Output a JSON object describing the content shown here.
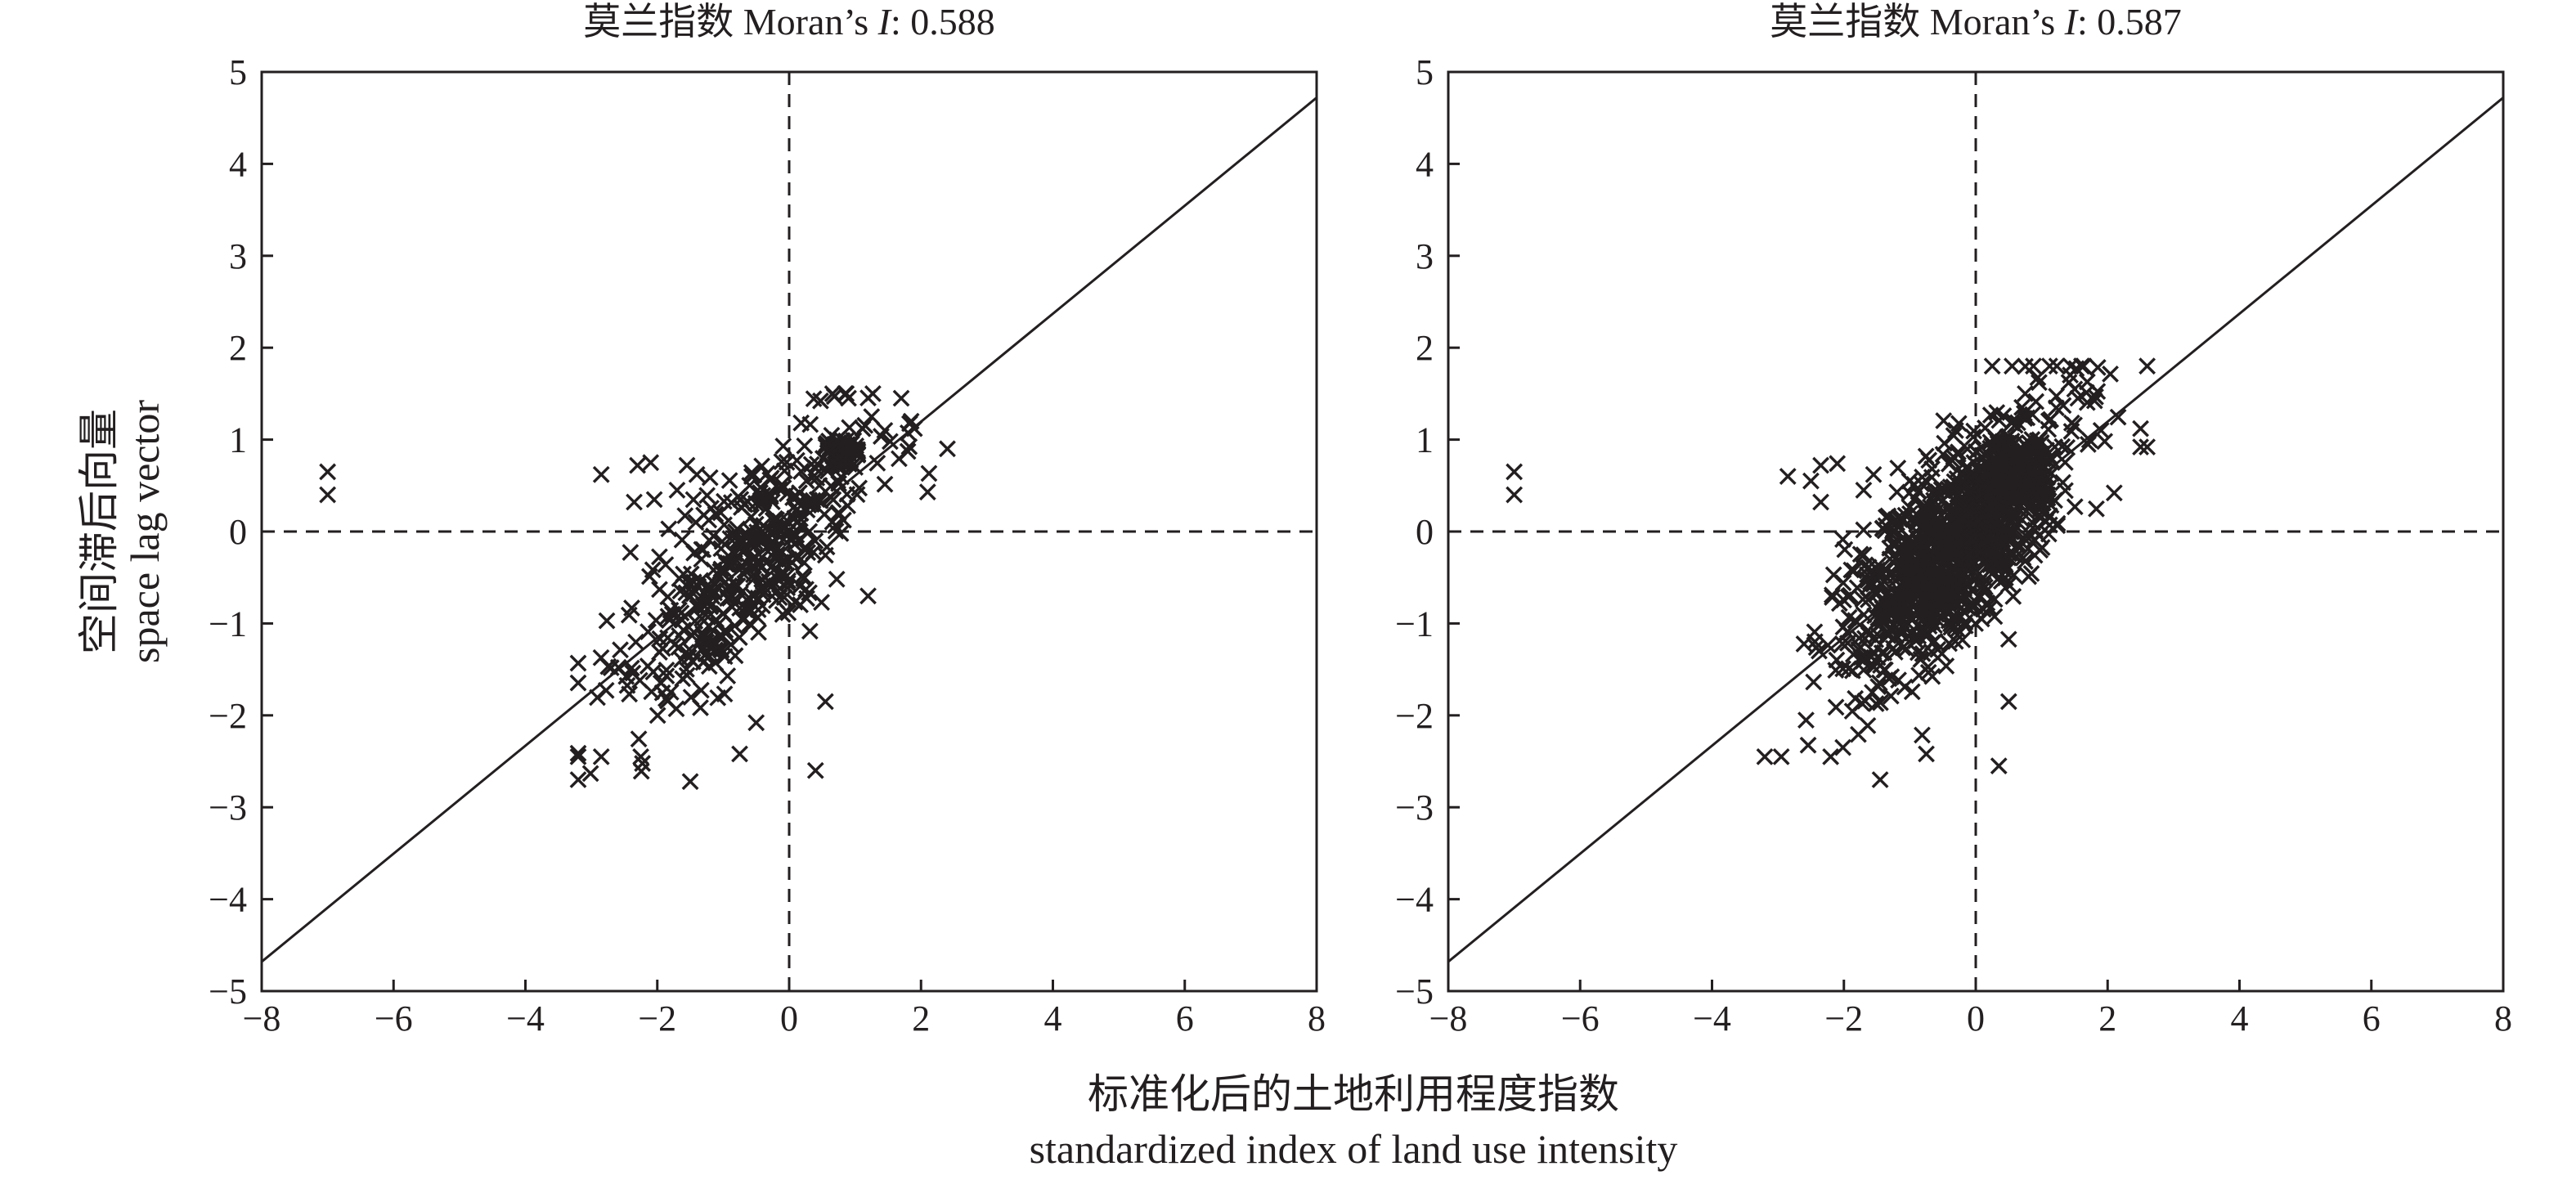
{
  "x_axis_label_cn": "标准化后的土地利用程度指数",
  "x_axis_label_en": "standardized index of land use intensity",
  "y_axis_label_cn": "空间滞后向量",
  "y_axis_label_en": "space lag vector",
  "chart_data": [
    {
      "type": "scatter",
      "title_cn": "莫兰指数",
      "title_en_prefix": "Moran’s ",
      "title_en_symbol": "I",
      "title_value": ": 0.588",
      "moran_i": 0.588,
      "xlim": [
        -8,
        8
      ],
      "ylim": [
        -5,
        5
      ],
      "xticks": [
        -8,
        -6,
        -4,
        -2,
        0,
        2,
        4,
        6,
        8
      ],
      "yticks": [
        -5,
        -4,
        -3,
        -2,
        -1,
        0,
        1,
        2,
        3,
        4,
        5
      ],
      "reference_lines": {
        "x": 0,
        "y": 0,
        "style": "dashed"
      },
      "fit_line": {
        "x1": -8,
        "y1": -4.68,
        "x2": 8,
        "y2": 4.72
      },
      "marker": "x",
      "seed": 588,
      "cluster": {
        "n": 450,
        "x_mean": -0.7,
        "x_sd": 0.9,
        "x_min": -3.2,
        "x_max": 2.5,
        "slope": 0.62,
        "noise": 0.55,
        "y_min": -2.7,
        "y_max": 1.5
      },
      "dense_cluster": {
        "n": 60,
        "x_min": 0.55,
        "x_max": 1.05,
        "y_min": 0.7,
        "y_max": 1.0
      },
      "points": [
        [
          -7.0,
          0.65
        ],
        [
          -7.0,
          0.4
        ],
        [
          -2.85,
          0.62
        ],
        [
          -2.3,
          0.72
        ],
        [
          -2.1,
          0.75
        ],
        [
          -1.55,
          0.72
        ],
        [
          -1.4,
          0.62
        ],
        [
          -1.7,
          0.45
        ],
        [
          -2.35,
          0.32
        ],
        [
          -3.2,
          -2.45
        ],
        [
          -2.85,
          -2.45
        ],
        [
          -2.25,
          -2.45
        ],
        [
          -1.5,
          -2.72
        ],
        [
          -0.75,
          -2.42
        ],
        [
          0.4,
          -2.6
        ],
        [
          0.55,
          -1.85
        ],
        [
          -0.5,
          -2.08
        ],
        [
          1.7,
          1.45
        ],
        [
          1.85,
          1.2
        ],
        [
          1.9,
          1.12
        ],
        [
          2.4,
          0.9
        ],
        [
          2.1,
          0.43
        ],
        [
          0.85,
          1.5
        ],
        [
          0.9,
          1.45
        ],
        [
          1.25,
          1.25
        ],
        [
          1.45,
          1.1
        ]
      ]
    },
    {
      "type": "scatter",
      "title_cn": "莫兰指数",
      "title_en_prefix": "Moran’s ",
      "title_en_symbol": "I",
      "title_value": ": 0.587",
      "moran_i": 0.587,
      "xlim": [
        -8,
        8
      ],
      "ylim": [
        -5,
        5
      ],
      "xticks": [
        -8,
        -6,
        -4,
        -2,
        0,
        2,
        4,
        6,
        8
      ],
      "yticks": [
        -5,
        -4,
        -3,
        -2,
        -1,
        0,
        1,
        2,
        3,
        4,
        5
      ],
      "reference_lines": {
        "x": 0,
        "y": 0,
        "style": "dashed"
      },
      "fit_line": {
        "x1": -8,
        "y1": -4.68,
        "x2": 8,
        "y2": 4.72
      },
      "marker": "x",
      "seed": 587,
      "cluster": {
        "n": 1100,
        "x_mean": -0.3,
        "x_sd": 0.8,
        "x_min": -3.2,
        "x_max": 2.6,
        "slope": 0.62,
        "noise": 0.5,
        "y_min": -2.7,
        "y_max": 1.8
      },
      "dense_cluster": {
        "n": 140,
        "x_min": 0.2,
        "x_max": 1.1,
        "y_min": 0.3,
        "y_max": 1.0
      },
      "points": [
        [
          -7.0,
          0.65
        ],
        [
          -7.0,
          0.4
        ],
        [
          -2.85,
          0.6
        ],
        [
          -2.35,
          0.72
        ],
        [
          -2.1,
          0.74
        ],
        [
          -2.5,
          0.55
        ],
        [
          -2.35,
          0.32
        ],
        [
          -1.55,
          0.62
        ],
        [
          -1.7,
          0.45
        ],
        [
          -3.2,
          -2.45
        ],
        [
          -2.95,
          -2.45
        ],
        [
          -2.2,
          -2.45
        ],
        [
          -1.45,
          -2.7
        ],
        [
          -0.75,
          -2.42
        ],
        [
          0.35,
          -2.55
        ],
        [
          0.5,
          -1.85
        ],
        [
          0.25,
          1.8
        ],
        [
          1.5,
          1.55
        ],
        [
          1.55,
          1.45
        ],
        [
          1.9,
          1.1
        ],
        [
          2.5,
          1.12
        ],
        [
          2.5,
          0.92
        ],
        [
          2.6,
          0.92
        ],
        [
          2.1,
          0.42
        ],
        [
          0.75,
          1.5
        ],
        [
          0.7,
          1.35
        ]
      ]
    }
  ]
}
